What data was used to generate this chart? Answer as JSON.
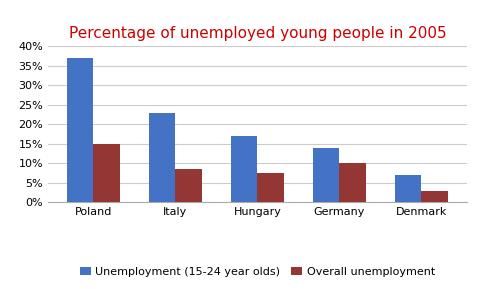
{
  "title": "Percentage of unemployed young people in 2005",
  "title_color": "#CC0000",
  "categories": [
    "Poland",
    "Italy",
    "Hungary",
    "Germany",
    "Denmark"
  ],
  "series": [
    {
      "label": "Unemployment (15-24 year olds)",
      "color": "#4472C4",
      "values": [
        37,
        23,
        17,
        14,
        7
      ]
    },
    {
      "label": "Overall unemployment",
      "color": "#943634",
      "values": [
        15,
        8.5,
        7.5,
        10,
        3
      ]
    }
  ],
  "ylim": [
    0,
    40
  ],
  "yticks": [
    0,
    5,
    10,
    15,
    20,
    25,
    30,
    35,
    40
  ],
  "ytick_labels": [
    "0%",
    "5%",
    "10%",
    "15%",
    "20%",
    "25%",
    "30%",
    "35%",
    "40%"
  ],
  "background_color": "#ffffff",
  "grid_color": "#cccccc",
  "bar_width": 0.32,
  "title_fontsize": 11,
  "tick_fontsize": 8,
  "legend_fontsize": 8
}
